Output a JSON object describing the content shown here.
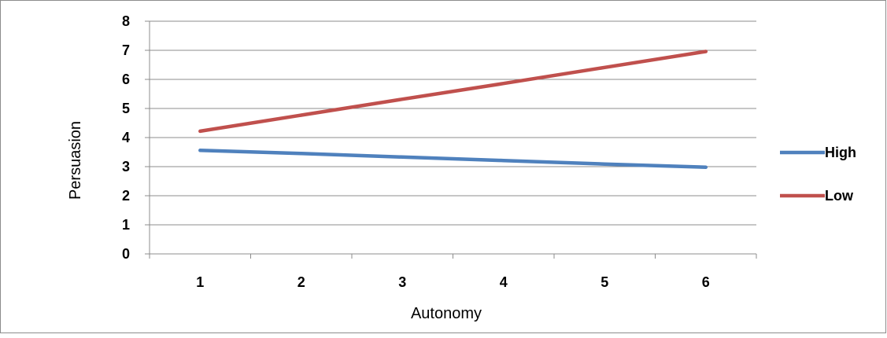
{
  "chart_data": {
    "type": "line",
    "title": "",
    "xlabel": "Autonomy",
    "ylabel": "Persuasion",
    "categories": [
      "1",
      "2",
      "3",
      "4",
      "5",
      "6"
    ],
    "x": [
      1,
      2,
      3,
      4,
      5,
      6
    ],
    "ylim": [
      0,
      8
    ],
    "yticks": [
      "0",
      "1",
      "2",
      "3",
      "4",
      "5",
      "6",
      "7",
      "8"
    ],
    "grid": true,
    "legend_position": "right",
    "series": [
      {
        "name": "High",
        "color": "#4F81BD",
        "values": [
          3.56,
          3.45,
          3.33,
          3.21,
          3.09,
          2.98
        ]
      },
      {
        "name": "Low",
        "color": "#C0504D",
        "values": [
          4.22,
          4.77,
          5.32,
          5.86,
          6.41,
          6.96
        ]
      }
    ]
  }
}
